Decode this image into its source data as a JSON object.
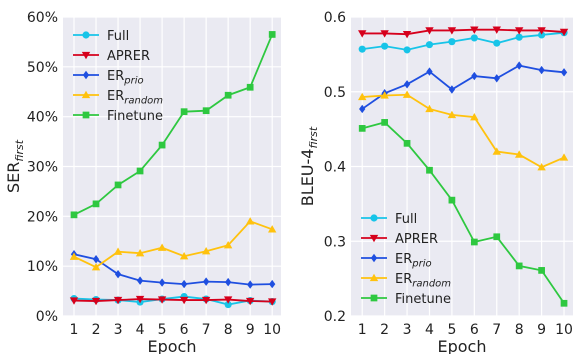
{
  "chart_data": [
    {
      "type": "line",
      "xlabel": "Epoch",
      "ylabel": "SER",
      "ylabel_sub": "first",
      "x": [
        1,
        2,
        3,
        4,
        5,
        6,
        7,
        8,
        9,
        10
      ],
      "xticks": [
        "1",
        "2",
        "3",
        "4",
        "5",
        "6",
        "7",
        "8",
        "9",
        "10"
      ],
      "ylim": [
        0,
        60
      ],
      "yticks": [
        0,
        10,
        20,
        30,
        40,
        50,
        60
      ],
      "ytick_labels": [
        "0%",
        "10%",
        "20%",
        "30%",
        "40%",
        "50%",
        "60%"
      ],
      "grid": true,
      "legend_position": "top-left",
      "series": [
        {
          "name": "Full",
          "name_sub": "",
          "color": "#17c4e8",
          "marker": "circle",
          "values": [
            3.5,
            3.3,
            3.2,
            2.8,
            3.4,
            3.9,
            3.4,
            2.3,
            3.1,
            2.9
          ]
        },
        {
          "name": "APRER",
          "name_sub": "",
          "color": "#d6001c",
          "marker": "triangle-down",
          "values": [
            3.1,
            3.0,
            3.2,
            3.4,
            3.3,
            3.2,
            3.2,
            3.3,
            3.0,
            2.9
          ]
        },
        {
          "name": "ER",
          "name_sub": "prio",
          "color": "#1f4fe0",
          "marker": "diamond",
          "values": [
            12.4,
            11.4,
            8.4,
            7.1,
            6.7,
            6.4,
            6.9,
            6.8,
            6.3,
            6.4
          ]
        },
        {
          "name": "ER",
          "name_sub": "random",
          "color": "#ffc20e",
          "marker": "triangle-up",
          "values": [
            11.9,
            9.8,
            12.9,
            12.6,
            13.7,
            12.0,
            13.0,
            14.2,
            19.0,
            17.4
          ]
        },
        {
          "name": "Finetune",
          "name_sub": "",
          "color": "#2ec840",
          "marker": "square",
          "values": [
            20.3,
            22.5,
            26.3,
            29.1,
            34.3,
            41.0,
            41.2,
            44.3,
            45.9,
            56.5
          ]
        }
      ]
    },
    {
      "type": "line",
      "xlabel": "Epoch",
      "ylabel": "BLEU-4",
      "ylabel_sub": "first",
      "x": [
        1,
        2,
        3,
        4,
        5,
        6,
        7,
        8,
        9,
        10
      ],
      "xticks": [
        "1",
        "2",
        "3",
        "4",
        "5",
        "6",
        "7",
        "8",
        "9",
        "10"
      ],
      "ylim": [
        0.2,
        0.6
      ],
      "yticks": [
        0.2,
        0.3,
        0.4,
        0.5,
        0.6
      ],
      "ytick_labels": [
        "0.2",
        "0.3",
        "0.4",
        "0.5",
        "0.6"
      ],
      "grid": true,
      "legend_position": "bottom-left",
      "series": [
        {
          "name": "Full",
          "name_sub": "",
          "color": "#17c4e8",
          "marker": "circle",
          "values": [
            0.557,
            0.561,
            0.556,
            0.563,
            0.567,
            0.572,
            0.565,
            0.573,
            0.576,
            0.579
          ]
        },
        {
          "name": "APRER",
          "name_sub": "",
          "color": "#d6001c",
          "marker": "triangle-down",
          "values": [
            0.578,
            0.578,
            0.577,
            0.582,
            0.582,
            0.583,
            0.583,
            0.582,
            0.582,
            0.58
          ]
        },
        {
          "name": "ER",
          "name_sub": "prio",
          "color": "#1f4fe0",
          "marker": "diamond",
          "values": [
            0.477,
            0.498,
            0.51,
            0.527,
            0.503,
            0.521,
            0.518,
            0.535,
            0.529,
            0.526
          ]
        },
        {
          "name": "ER",
          "name_sub": "random",
          "color": "#ffc20e",
          "marker": "triangle-up",
          "values": [
            0.493,
            0.495,
            0.496,
            0.477,
            0.469,
            0.466,
            0.42,
            0.416,
            0.399,
            0.412
          ]
        },
        {
          "name": "Finetune",
          "name_sub": "",
          "color": "#2ec840",
          "marker": "square",
          "values": [
            0.451,
            0.459,
            0.431,
            0.395,
            0.355,
            0.299,
            0.306,
            0.267,
            0.261,
            0.217
          ]
        }
      ]
    }
  ]
}
